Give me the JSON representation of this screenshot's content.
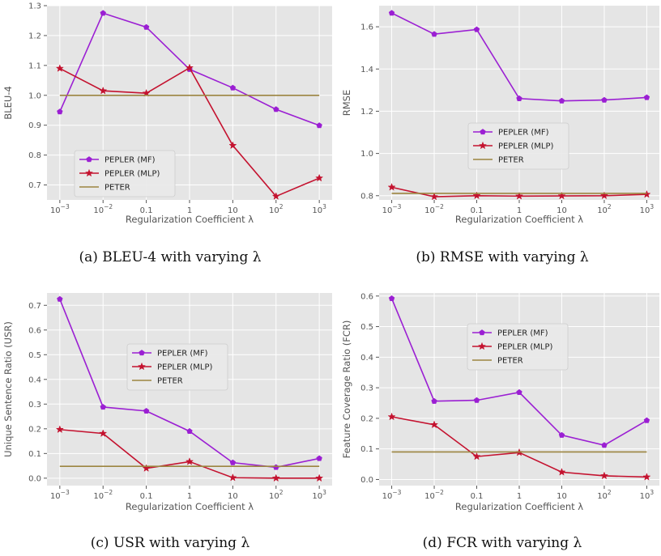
{
  "figure": {
    "panels": [
      {
        "caption": "(a) BLEU-4 with varying λ"
      },
      {
        "caption": "(b) RMSE with varying λ"
      },
      {
        "caption": "(c) USR with varying λ"
      },
      {
        "caption": "(d) FCR with varying λ"
      }
    ]
  },
  "chart_data": [
    {
      "type": "line",
      "xlabel": "Regularization Coefficient λ",
      "ylabel": "BLEU-4",
      "categories": [
        "10⁻³",
        "10⁻²",
        "0.1",
        "1",
        "10",
        "10²",
        "10³"
      ],
      "ylim": [
        0.65,
        1.3
      ],
      "yticks": [
        0.7,
        0.8,
        0.9,
        1.0,
        1.1,
        1.2,
        1.3
      ],
      "yticklabels": [
        "0.7",
        "0.8",
        "0.9",
        "1.0",
        "1.1",
        "1.2",
        "1.3"
      ],
      "grid": true,
      "legend_position": "lower-left",
      "series": [
        {
          "name": "PEPLER (MF)",
          "color": "#9b1fd3",
          "marker": "pentagon",
          "values": [
            0.945,
            1.275,
            1.228,
            1.087,
            1.025,
            0.953,
            0.899
          ]
        },
        {
          "name": "PEPLER (MLP)",
          "color": "#c4122f",
          "marker": "star",
          "values": [
            1.09,
            1.015,
            1.007,
            1.092,
            0.832,
            0.662,
            0.723
          ]
        },
        {
          "name": "PETER",
          "color": "#9c8540",
          "marker": "none",
          "values": [
            1.0,
            1.0,
            1.0,
            1.0,
            1.0,
            1.0,
            1.0
          ]
        }
      ]
    },
    {
      "type": "line",
      "xlabel": "Regularization Coefficient λ",
      "ylabel": "RMSE",
      "categories": [
        "10⁻³",
        "10⁻²",
        "0.1",
        "1",
        "10",
        "10²",
        "10³"
      ],
      "ylim": [
        0.78,
        1.7
      ],
      "yticks": [
        0.8,
        1.0,
        1.2,
        1.4,
        1.6
      ],
      "yticklabels": [
        "0.8",
        "1.0",
        "1.2",
        "1.4",
        "1.6"
      ],
      "grid": true,
      "legend_position": "center",
      "series": [
        {
          "name": "PEPLER (MF)",
          "color": "#9b1fd3",
          "marker": "pentagon",
          "values": [
            1.665,
            1.565,
            1.587,
            1.26,
            1.249,
            1.253,
            1.265
          ]
        },
        {
          "name": "PEPLER (MLP)",
          "color": "#c4122f",
          "marker": "star",
          "values": [
            0.84,
            0.795,
            0.8,
            0.798,
            0.799,
            0.8,
            0.806
          ]
        },
        {
          "name": "PETER",
          "color": "#9c8540",
          "marker": "none",
          "values": [
            0.811,
            0.811,
            0.811,
            0.811,
            0.811,
            0.811,
            0.811
          ]
        }
      ]
    },
    {
      "type": "line",
      "xlabel": "Regularization Coefficient λ",
      "ylabel": "Unique Sentence Ratio (USR)",
      "categories": [
        "10⁻³",
        "10⁻²",
        "0.1",
        "1",
        "10",
        "10²",
        "10³"
      ],
      "ylim": [
        -0.03,
        0.75
      ],
      "yticks": [
        0.0,
        0.1,
        0.2,
        0.3,
        0.4,
        0.5,
        0.6,
        0.7
      ],
      "yticklabels": [
        "0.0",
        "0.1",
        "0.2",
        "0.3",
        "0.4",
        "0.5",
        "0.6",
        "0.7"
      ],
      "grid": true,
      "legend_position": "center-right",
      "series": [
        {
          "name": "PEPLER (MF)",
          "color": "#9b1fd3",
          "marker": "pentagon",
          "values": [
            0.725,
            0.288,
            0.272,
            0.19,
            0.063,
            0.044,
            0.08
          ]
        },
        {
          "name": "PEPLER (MLP)",
          "color": "#c4122f",
          "marker": "star",
          "values": [
            0.197,
            0.181,
            0.04,
            0.067,
            0.002,
            0.0,
            0.0
          ]
        },
        {
          "name": "PETER",
          "color": "#9c8540",
          "marker": "none",
          "values": [
            0.048,
            0.048,
            0.048,
            0.048,
            0.048,
            0.048,
            0.048
          ]
        }
      ]
    },
    {
      "type": "line",
      "xlabel": "Regularization Coefficient λ",
      "ylabel": "Feature Coverage Ratio (FCR)",
      "categories": [
        "10⁻³",
        "10⁻²",
        "0.1",
        "1",
        "10",
        "10²",
        "10³"
      ],
      "ylim": [
        -0.02,
        0.61
      ],
      "yticks": [
        0.0,
        0.1,
        0.2,
        0.3,
        0.4,
        0.5,
        0.6
      ],
      "yticklabels": [
        "0.0",
        "0.1",
        "0.2",
        "0.3",
        "0.4",
        "0.5",
        "0.6"
      ],
      "grid": true,
      "legend_position": "upper-center",
      "series": [
        {
          "name": "PEPLER (MF)",
          "color": "#9b1fd3",
          "marker": "pentagon",
          "values": [
            0.592,
            0.256,
            0.259,
            0.285,
            0.145,
            0.112,
            0.193
          ]
        },
        {
          "name": "PEPLER (MLP)",
          "color": "#c4122f",
          "marker": "star",
          "values": [
            0.205,
            0.179,
            0.075,
            0.088,
            0.024,
            0.012,
            0.008
          ]
        },
        {
          "name": "PETER",
          "color": "#9c8540",
          "marker": "none",
          "values": [
            0.09,
            0.09,
            0.09,
            0.09,
            0.09,
            0.09,
            0.09
          ]
        }
      ]
    }
  ]
}
